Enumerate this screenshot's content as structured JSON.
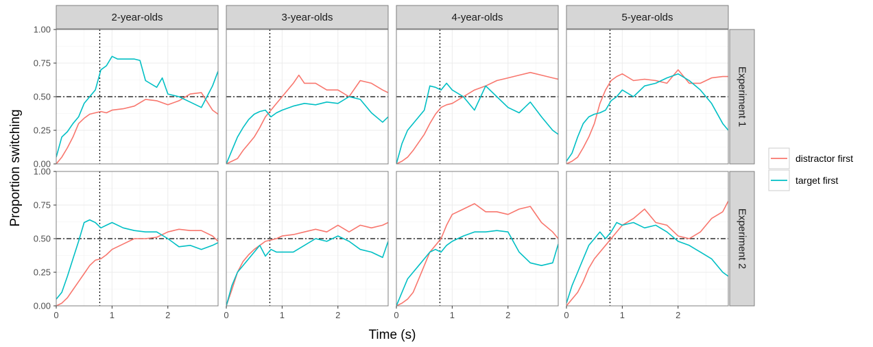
{
  "chart_data": {
    "type": "line",
    "layout": "facet_grid",
    "xlabel": "Time (s)",
    "ylabel": "Proportion switching",
    "xlim": [
      0,
      2.9
    ],
    "ylim": [
      0,
      1
    ],
    "x_ticks": [
      0,
      1,
      2
    ],
    "x_tick_labels": [
      "0",
      "1",
      "2"
    ],
    "y_ticks": [
      0,
      0.25,
      0.5,
      0.75,
      1
    ],
    "y_tick_labels": [
      "0.00",
      "0.25",
      "0.50",
      "0.75",
      "1.00"
    ],
    "columns": [
      "2-year-olds",
      "3-year-olds",
      "4-year-olds",
      "5-year-olds"
    ],
    "rows": [
      "Experiment 1",
      "Experiment 2"
    ],
    "reference_lines": {
      "hline_y": 0.5,
      "vline_x": 0.78
    },
    "grid": true,
    "legend_position": "right",
    "series_names": [
      "distractor first",
      "target first"
    ],
    "series_colors": {
      "distractor first": "#F8766D",
      "target first": "#00BFC4"
    },
    "panels": [
      {
        "row": 0,
        "col": 0,
        "series": [
          {
            "name": "distractor first",
            "x": [
              0,
              0.1,
              0.2,
              0.3,
              0.4,
              0.5,
              0.6,
              0.7,
              0.8,
              0.9,
              1.0,
              1.2,
              1.4,
              1.6,
              1.8,
              2.0,
              2.2,
              2.4,
              2.6,
              2.8,
              2.9
            ],
            "y": [
              0.0,
              0.05,
              0.12,
              0.2,
              0.3,
              0.34,
              0.37,
              0.38,
              0.39,
              0.38,
              0.4,
              0.41,
              0.43,
              0.48,
              0.47,
              0.44,
              0.47,
              0.52,
              0.53,
              0.4,
              0.37
            ]
          },
          {
            "name": "target first",
            "x": [
              0,
              0.1,
              0.2,
              0.3,
              0.4,
              0.5,
              0.6,
              0.7,
              0.8,
              0.9,
              1.0,
              1.1,
              1.2,
              1.4,
              1.5,
              1.6,
              1.8,
              1.9,
              2.0,
              2.2,
              2.4,
              2.6,
              2.8,
              2.9
            ],
            "y": [
              0.05,
              0.2,
              0.24,
              0.3,
              0.35,
              0.45,
              0.5,
              0.55,
              0.7,
              0.73,
              0.8,
              0.78,
              0.78,
              0.78,
              0.77,
              0.62,
              0.57,
              0.64,
              0.52,
              0.5,
              0.46,
              0.42,
              0.58,
              0.69
            ]
          }
        ]
      },
      {
        "row": 0,
        "col": 1,
        "series": [
          {
            "name": "distractor first",
            "x": [
              0,
              0.1,
              0.2,
              0.3,
              0.4,
              0.5,
              0.6,
              0.7,
              0.8,
              0.9,
              1.0,
              1.2,
              1.3,
              1.4,
              1.6,
              1.8,
              2.0,
              2.2,
              2.4,
              2.6,
              2.8,
              2.9
            ],
            "y": [
              0.0,
              0.02,
              0.04,
              0.1,
              0.15,
              0.2,
              0.27,
              0.35,
              0.4,
              0.45,
              0.5,
              0.6,
              0.66,
              0.6,
              0.6,
              0.55,
              0.55,
              0.5,
              0.62,
              0.6,
              0.55,
              0.53
            ]
          },
          {
            "name": "target first",
            "x": [
              0,
              0.1,
              0.2,
              0.3,
              0.4,
              0.5,
              0.6,
              0.7,
              0.8,
              0.9,
              1.0,
              1.2,
              1.4,
              1.6,
              1.8,
              2.0,
              2.2,
              2.4,
              2.6,
              2.8,
              2.9
            ],
            "y": [
              0.0,
              0.1,
              0.2,
              0.27,
              0.33,
              0.37,
              0.39,
              0.4,
              0.35,
              0.38,
              0.4,
              0.43,
              0.45,
              0.44,
              0.46,
              0.45,
              0.5,
              0.48,
              0.38,
              0.31,
              0.35
            ]
          }
        ]
      },
      {
        "row": 0,
        "col": 2,
        "series": [
          {
            "name": "distractor first",
            "x": [
              0,
              0.1,
              0.2,
              0.3,
              0.4,
              0.5,
              0.6,
              0.7,
              0.8,
              0.9,
              1.0,
              1.2,
              1.4,
              1.6,
              1.8,
              2.0,
              2.2,
              2.4,
              2.6,
              2.8,
              2.9
            ],
            "y": [
              0.0,
              0.02,
              0.05,
              0.1,
              0.16,
              0.22,
              0.3,
              0.37,
              0.42,
              0.44,
              0.45,
              0.5,
              0.55,
              0.58,
              0.62,
              0.64,
              0.66,
              0.68,
              0.66,
              0.64,
              0.63
            ]
          },
          {
            "name": "target first",
            "x": [
              0,
              0.1,
              0.2,
              0.3,
              0.4,
              0.5,
              0.6,
              0.7,
              0.8,
              0.9,
              1.0,
              1.2,
              1.4,
              1.6,
              1.8,
              2.0,
              2.2,
              2.4,
              2.6,
              2.8,
              2.9
            ],
            "y": [
              0.0,
              0.15,
              0.25,
              0.3,
              0.35,
              0.4,
              0.58,
              0.57,
              0.55,
              0.6,
              0.55,
              0.5,
              0.4,
              0.58,
              0.5,
              0.42,
              0.38,
              0.46,
              0.35,
              0.25,
              0.22
            ]
          }
        ]
      },
      {
        "row": 0,
        "col": 3,
        "series": [
          {
            "name": "distractor first",
            "x": [
              0,
              0.1,
              0.2,
              0.3,
              0.4,
              0.5,
              0.6,
              0.7,
              0.8,
              0.9,
              1.0,
              1.2,
              1.4,
              1.6,
              1.8,
              2.0,
              2.2,
              2.4,
              2.6,
              2.8,
              2.9
            ],
            "y": [
              0.0,
              0.02,
              0.05,
              0.12,
              0.2,
              0.3,
              0.45,
              0.55,
              0.62,
              0.65,
              0.67,
              0.62,
              0.63,
              0.62,
              0.6,
              0.7,
              0.6,
              0.6,
              0.64,
              0.65,
              0.65
            ]
          },
          {
            "name": "target first",
            "x": [
              0,
              0.1,
              0.2,
              0.3,
              0.4,
              0.5,
              0.6,
              0.7,
              0.8,
              0.9,
              1.0,
              1.2,
              1.4,
              1.6,
              1.8,
              2.0,
              2.2,
              2.4,
              2.6,
              2.8,
              2.9
            ],
            "y": [
              0.02,
              0.08,
              0.2,
              0.3,
              0.35,
              0.37,
              0.38,
              0.4,
              0.47,
              0.5,
              0.55,
              0.5,
              0.58,
              0.6,
              0.64,
              0.67,
              0.62,
              0.55,
              0.45,
              0.3,
              0.25
            ]
          }
        ]
      },
      {
        "row": 1,
        "col": 0,
        "series": [
          {
            "name": "distractor first",
            "x": [
              0,
              0.1,
              0.2,
              0.3,
              0.4,
              0.5,
              0.6,
              0.7,
              0.8,
              0.9,
              1.0,
              1.2,
              1.4,
              1.6,
              1.8,
              2.0,
              2.2,
              2.4,
              2.6,
              2.8,
              2.9
            ],
            "y": [
              0.0,
              0.02,
              0.06,
              0.12,
              0.18,
              0.24,
              0.3,
              0.34,
              0.35,
              0.38,
              0.42,
              0.46,
              0.5,
              0.5,
              0.51,
              0.55,
              0.57,
              0.56,
              0.56,
              0.52,
              0.48
            ]
          },
          {
            "name": "target first",
            "x": [
              0,
              0.1,
              0.2,
              0.3,
              0.4,
              0.5,
              0.6,
              0.7,
              0.8,
              0.9,
              1.0,
              1.2,
              1.4,
              1.6,
              1.8,
              2.0,
              2.2,
              2.4,
              2.6,
              2.8,
              2.9
            ],
            "y": [
              0.05,
              0.1,
              0.22,
              0.35,
              0.48,
              0.62,
              0.64,
              0.62,
              0.58,
              0.6,
              0.62,
              0.58,
              0.56,
              0.55,
              0.55,
              0.5,
              0.44,
              0.45,
              0.42,
              0.45,
              0.47
            ]
          }
        ]
      },
      {
        "row": 1,
        "col": 1,
        "series": [
          {
            "name": "distractor first",
            "x": [
              0,
              0.1,
              0.2,
              0.3,
              0.4,
              0.5,
              0.6,
              0.7,
              0.8,
              0.9,
              1.0,
              1.2,
              1.4,
              1.6,
              1.8,
              2.0,
              2.2,
              2.4,
              2.6,
              2.8,
              2.9
            ],
            "y": [
              0.0,
              0.12,
              0.25,
              0.33,
              0.38,
              0.42,
              0.45,
              0.48,
              0.49,
              0.5,
              0.52,
              0.53,
              0.55,
              0.57,
              0.55,
              0.6,
              0.55,
              0.6,
              0.58,
              0.6,
              0.62
            ]
          },
          {
            "name": "target first",
            "x": [
              0,
              0.1,
              0.2,
              0.3,
              0.4,
              0.5,
              0.6,
              0.7,
              0.8,
              0.9,
              1.0,
              1.2,
              1.4,
              1.6,
              1.8,
              2.0,
              2.2,
              2.4,
              2.6,
              2.8,
              2.9
            ],
            "y": [
              0.0,
              0.15,
              0.25,
              0.3,
              0.35,
              0.4,
              0.45,
              0.37,
              0.42,
              0.4,
              0.4,
              0.4,
              0.45,
              0.5,
              0.48,
              0.52,
              0.48,
              0.42,
              0.4,
              0.36,
              0.48
            ]
          }
        ]
      },
      {
        "row": 1,
        "col": 2,
        "series": [
          {
            "name": "distractor first",
            "x": [
              0,
              0.1,
              0.2,
              0.3,
              0.4,
              0.5,
              0.6,
              0.7,
              0.8,
              0.9,
              1.0,
              1.2,
              1.4,
              1.6,
              1.8,
              2.0,
              2.2,
              2.4,
              2.6,
              2.8,
              2.9
            ],
            "y": [
              0.0,
              0.02,
              0.05,
              0.1,
              0.2,
              0.3,
              0.4,
              0.45,
              0.5,
              0.6,
              0.68,
              0.72,
              0.76,
              0.7,
              0.7,
              0.68,
              0.72,
              0.74,
              0.62,
              0.55,
              0.5
            ]
          },
          {
            "name": "target first",
            "x": [
              0,
              0.1,
              0.2,
              0.3,
              0.4,
              0.5,
              0.6,
              0.7,
              0.8,
              0.9,
              1.0,
              1.2,
              1.4,
              1.6,
              1.8,
              2.0,
              2.2,
              2.4,
              2.6,
              2.8,
              2.9
            ],
            "y": [
              0.0,
              0.1,
              0.2,
              0.25,
              0.3,
              0.35,
              0.4,
              0.42,
              0.4,
              0.45,
              0.48,
              0.52,
              0.55,
              0.55,
              0.56,
              0.55,
              0.4,
              0.32,
              0.3,
              0.32,
              0.46
            ]
          }
        ]
      },
      {
        "row": 1,
        "col": 3,
        "series": [
          {
            "name": "distractor first",
            "x": [
              0,
              0.1,
              0.2,
              0.3,
              0.4,
              0.5,
              0.6,
              0.7,
              0.8,
              0.9,
              1.0,
              1.2,
              1.4,
              1.6,
              1.8,
              2.0,
              2.2,
              2.4,
              2.6,
              2.8,
              2.9
            ],
            "y": [
              0.0,
              0.05,
              0.1,
              0.18,
              0.28,
              0.35,
              0.4,
              0.45,
              0.5,
              0.55,
              0.6,
              0.65,
              0.72,
              0.62,
              0.6,
              0.52,
              0.5,
              0.55,
              0.65,
              0.7,
              0.78
            ]
          },
          {
            "name": "target first",
            "x": [
              0,
              0.1,
              0.2,
              0.3,
              0.4,
              0.5,
              0.6,
              0.7,
              0.8,
              0.9,
              1.0,
              1.2,
              1.4,
              1.6,
              1.8,
              2.0,
              2.2,
              2.4,
              2.6,
              2.8,
              2.9
            ],
            "y": [
              0.02,
              0.15,
              0.25,
              0.35,
              0.45,
              0.5,
              0.55,
              0.5,
              0.55,
              0.62,
              0.6,
              0.62,
              0.58,
              0.6,
              0.55,
              0.48,
              0.45,
              0.4,
              0.35,
              0.25,
              0.22
            ]
          }
        ]
      }
    ]
  }
}
